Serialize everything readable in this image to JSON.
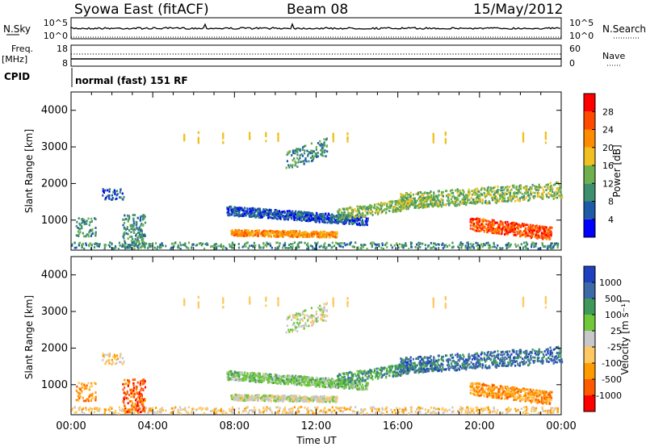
{
  "header": {
    "station": "Syowa East (fitACF)",
    "beam": "Beam 08",
    "date": "15/May/2012"
  },
  "top_panels": {
    "nsky_label": "N.Sky",
    "nsky_ticks": [
      "10^5",
      "10^0"
    ],
    "nsky_right_ticks": [
      "10^5",
      "10^0"
    ],
    "nsearch_label": "N.Search",
    "freq_label": "Freq.",
    "freq_unit": "[MHz]",
    "freq_ticks": [
      "18",
      "8"
    ],
    "nave_ticks": [
      "60",
      "0"
    ],
    "nave_label": "Nave",
    "cpid_label": "CPID",
    "cpid_text": "normal (fast) 151 RF"
  },
  "chart_data": [
    {
      "type": "heatmap",
      "quantity": "Power",
      "ylabel": "Slant Range [km]",
      "xlabel": "",
      "yticks": [
        "1000",
        "2000",
        "3000",
        "4000"
      ],
      "ylim": [
        180,
        4500
      ],
      "xlim": [
        0,
        24
      ],
      "colorbar_label": "Power [dB]",
      "colorbar_ticks": [
        "4",
        "8",
        "12",
        "16",
        "20",
        "24",
        "28"
      ],
      "colorbar_colors": [
        "#0000ff",
        "#1e5aa8",
        "#3e8f6e",
        "#6db04d",
        "#f0c020",
        "#ff8c00",
        "#ff4a00",
        "#ff0000"
      ]
    },
    {
      "type": "heatmap",
      "quantity": "Velocity",
      "ylabel": "Slant Range [km]",
      "xlabel": "Time UT",
      "yticks": [
        "1000",
        "2000",
        "3000",
        "4000"
      ],
      "xticks": [
        "00:00",
        "04:00",
        "08:00",
        "12:00",
        "16:00",
        "20:00",
        "00:00"
      ],
      "ylim": [
        180,
        4500
      ],
      "xlim": [
        0,
        24
      ],
      "colorbar_label": "Velocity [m s⁻¹]",
      "colorbar_ticks": [
        "-1000",
        "-500",
        "-100",
        "-25",
        "25",
        "100",
        "500",
        "1000"
      ],
      "colorbar_colors": [
        "#ff0000",
        "#ff5a00",
        "#ff9a00",
        "#ffc860",
        "#c8c8c8",
        "#6fc83a",
        "#3f9a5a",
        "#3c6aa8",
        "#2040c0"
      ]
    }
  ]
}
